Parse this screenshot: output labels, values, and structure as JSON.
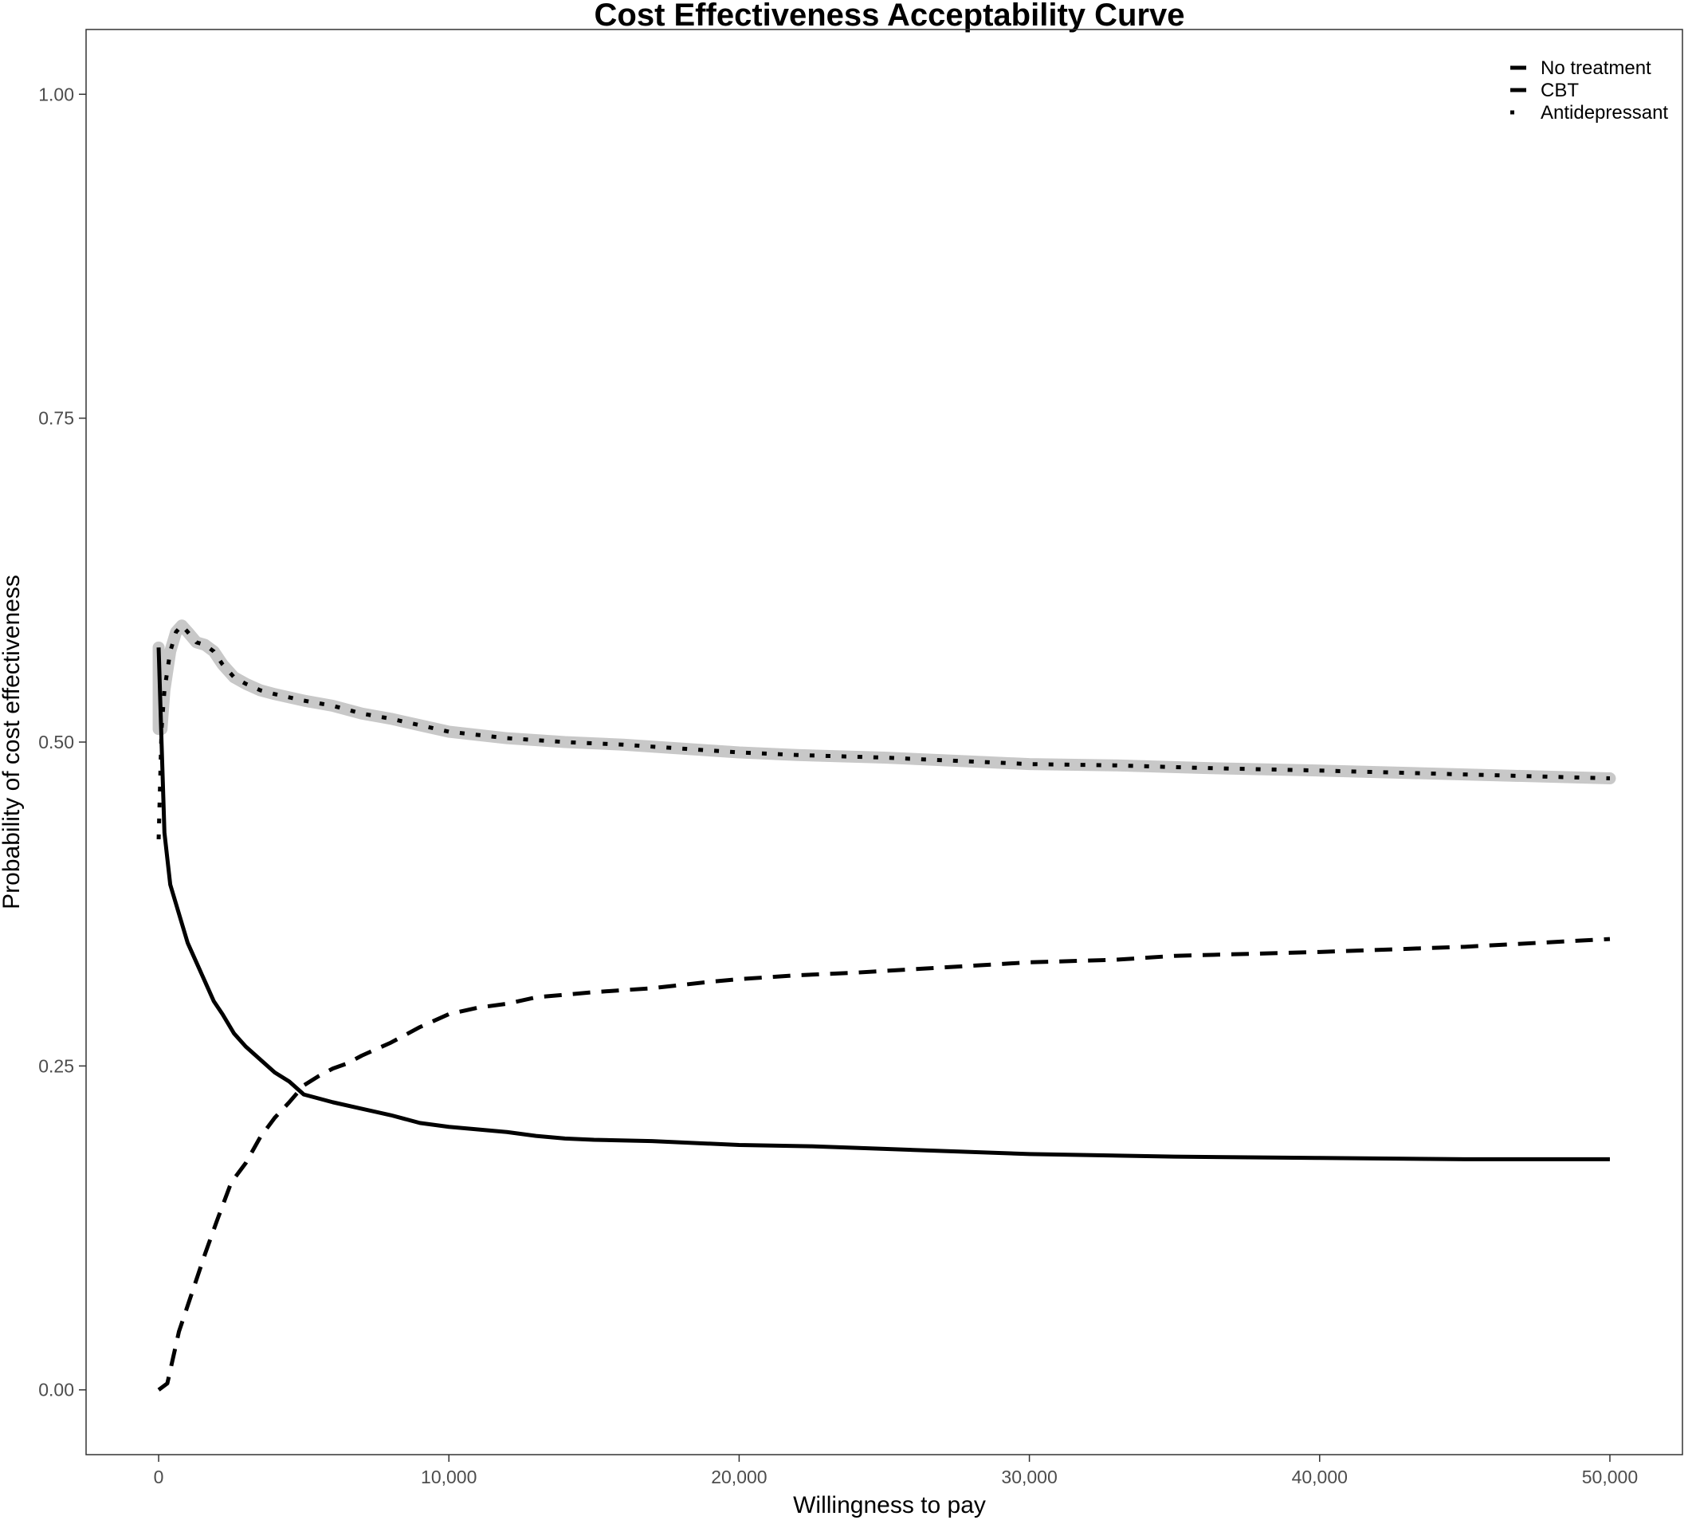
{
  "chart_data": {
    "type": "line",
    "title": "Cost Effectiveness Acceptability Curve",
    "xlabel": "Willingness to pay",
    "ylabel": "Probability of cost effectiveness",
    "xlim": [
      -2500,
      52500
    ],
    "ylim": [
      -0.05,
      1.05
    ],
    "x_ticks": [
      0,
      10000,
      20000,
      30000,
      40000,
      50000
    ],
    "x_tick_labels": [
      "0",
      "10,000",
      "20,000",
      "30,000",
      "40,000",
      "50,000"
    ],
    "y_ticks": [
      0,
      0.25,
      0.5,
      0.75,
      1.0
    ],
    "y_tick_labels": [
      "0.00",
      "0.25",
      "0.50",
      "0.75",
      "1.00"
    ],
    "grid": false,
    "legend_position": "top-right",
    "frontier_color": "#c8c8c8",
    "series": [
      {
        "name": "No treatment",
        "style": "solid",
        "color": "#000000",
        "x": [
          0,
          100,
          200,
          400,
          600,
          800,
          1000,
          1300,
          1600,
          1900,
          2200,
          2600,
          3000,
          3500,
          4000,
          4500,
          5000,
          5500,
          6000,
          7000,
          8000,
          9000,
          10000,
          11000,
          12000,
          13000,
          14000,
          15000,
          17000,
          20000,
          22500,
          25000,
          30000,
          35000,
          40000,
          45000,
          50000
        ],
        "y": [
          0.573,
          0.5,
          0.43,
          0.39,
          0.375,
          0.36,
          0.345,
          0.33,
          0.315,
          0.3,
          0.29,
          0.275,
          0.265,
          0.255,
          0.245,
          0.238,
          0.228,
          0.225,
          0.222,
          0.217,
          0.212,
          0.206,
          0.203,
          0.201,
          0.199,
          0.196,
          0.194,
          0.193,
          0.192,
          0.189,
          0.188,
          0.186,
          0.182,
          0.18,
          0.179,
          0.178,
          0.178
        ]
      },
      {
        "name": "CBT",
        "style": "dashed",
        "color": "#000000",
        "x": [
          0,
          300,
          500,
          700,
          1000,
          1300,
          1600,
          2000,
          2500,
          3000,
          3500,
          4000,
          4500,
          5000,
          5500,
          6000,
          6500,
          7000,
          8000,
          9000,
          10000,
          11000,
          12000,
          13000,
          14000,
          15000,
          17000,
          19000,
          20000,
          22000,
          24000,
          27000,
          30000,
          33000,
          35000,
          40000,
          45000,
          50000
        ],
        "y": [
          0.0,
          0.005,
          0.025,
          0.045,
          0.065,
          0.085,
          0.105,
          0.13,
          0.16,
          0.175,
          0.195,
          0.21,
          0.222,
          0.235,
          0.242,
          0.248,
          0.252,
          0.258,
          0.268,
          0.28,
          0.29,
          0.295,
          0.298,
          0.303,
          0.305,
          0.307,
          0.31,
          0.315,
          0.317,
          0.32,
          0.322,
          0.326,
          0.33,
          0.332,
          0.335,
          0.338,
          0.342,
          0.348
        ]
      },
      {
        "name": "Antidepressant",
        "style": "dotted",
        "color": "#000000",
        "x": [
          0,
          100,
          200,
          400,
          600,
          800,
          1000,
          1300,
          1600,
          1900,
          2200,
          2600,
          3000,
          3500,
          4000,
          5000,
          6000,
          7000,
          8000,
          9000,
          10000,
          12000,
          14000,
          16000,
          18000,
          20000,
          22000,
          25000,
          28000,
          30000,
          33000,
          36000,
          40000,
          45000,
          50000
        ],
        "y": [
          0.425,
          0.51,
          0.54,
          0.57,
          0.585,
          0.59,
          0.585,
          0.577,
          0.575,
          0.57,
          0.56,
          0.55,
          0.545,
          0.54,
          0.537,
          0.532,
          0.528,
          0.522,
          0.518,
          0.513,
          0.508,
          0.503,
          0.5,
          0.498,
          0.495,
          0.492,
          0.49,
          0.488,
          0.485,
          0.483,
          0.482,
          0.48,
          0.478,
          0.475,
          0.472
        ]
      }
    ]
  }
}
